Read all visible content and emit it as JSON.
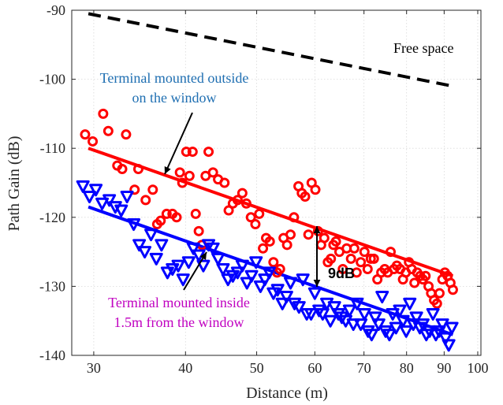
{
  "chart_data": {
    "type": "scatter",
    "title": "",
    "xlabel": "Distance (m)",
    "ylabel": "Path Gain (dB)",
    "xscale": "log",
    "xlim": [
      28,
      101
    ],
    "ylim": [
      -140,
      -90
    ],
    "x_ticks": [
      30,
      40,
      50,
      60,
      70,
      80,
      90,
      100
    ],
    "x_tick_labels": [
      "30",
      "40",
      "50",
      "60",
      "70",
      "80",
      "90",
      "100"
    ],
    "y_ticks": [
      -140,
      -130,
      -120,
      -110,
      -100,
      -90
    ],
    "y_tick_labels": [
      "-140",
      "-130",
      "-120",
      "-110",
      "-100",
      "-90"
    ],
    "grid": "dotted",
    "colors": {
      "outside": "#ff0000",
      "inside": "#0000ff",
      "free_space": "#000000",
      "outside_text": "#1f6fb2",
      "inside_text": "#c000c0"
    },
    "series": [
      {
        "marker": "circle",
        "color": "#ff0000",
        "x": [
          29.2,
          29.9,
          30.9,
          31.4,
          32.3,
          32.8,
          33.2,
          34.1,
          34.5,
          35.3,
          36.1,
          36.6,
          37.0,
          37.7,
          38.4,
          38.9,
          39.3,
          39.6,
          40.1,
          40.5,
          40.9,
          41.3,
          41.7,
          42.1,
          42.6,
          43.0,
          43.6,
          44.3,
          45.2,
          45.8,
          46.4,
          47.1,
          47.8,
          48.4,
          49.1,
          49.8,
          50.4,
          51.0,
          51.5,
          52.1,
          52.7,
          53.3,
          53.8,
          54.4,
          55.0,
          55.6,
          56.2,
          57.0,
          57.6,
          58.2,
          58.8,
          59.4,
          60.1,
          60.6,
          61.2,
          61.8,
          62.5,
          63.1,
          63.6,
          64.1,
          64.8,
          65.5,
          66.3,
          67.2,
          67.9,
          68.4,
          69.3,
          70.1,
          70.8,
          71.5,
          72.2,
          73.0,
          73.9,
          74.7,
          75.4,
          76.1,
          76.9,
          77.6,
          78.4,
          79.1,
          79.8,
          80.6,
          81.3,
          82.0,
          82.7,
          83.5,
          84.2,
          84.9,
          85.7,
          86.4,
          87.2,
          88.0,
          88.7,
          89.5,
          90.2,
          91.0,
          91.8,
          92.5
        ],
        "y": [
          -108.0,
          -109.0,
          -105.0,
          -107.5,
          -112.5,
          -113.0,
          -108.0,
          -116.0,
          -113.0,
          -117.5,
          -116.0,
          -121.0,
          -120.5,
          -119.5,
          -119.5,
          -120.0,
          -113.5,
          -115.0,
          -110.5,
          -114.0,
          -110.5,
          -119.5,
          -122.0,
          -124.0,
          -114.0,
          -110.5,
          -113.5,
          -114.5,
          -115.0,
          -119.0,
          -118.0,
          -117.5,
          -116.5,
          -118.0,
          -120.0,
          -121.0,
          -119.5,
          -124.5,
          -123.0,
          -123.5,
          -126.5,
          -128.0,
          -127.5,
          -123.0,
          -124.0,
          -122.5,
          -120.0,
          -115.5,
          -116.5,
          -117.0,
          -122.5,
          -115.0,
          -116.0,
          -122.0,
          -124.0,
          -123.0,
          -126.5,
          -126.0,
          -124.0,
          -123.5,
          -125.0,
          -127.5,
          -124.5,
          -126.0,
          -124.5,
          -128.0,
          -126.5,
          -125.0,
          -127.5,
          -126.0,
          -126.0,
          -129.0,
          -128.0,
          -127.5,
          -128.0,
          -125.0,
          -127.5,
          -127.0,
          -127.5,
          -129.0,
          -128.0,
          -126.5,
          -127.5,
          -129.5,
          -128.0,
          -128.5,
          -129.0,
          -128.5,
          -130.0,
          -131.0,
          -132.0,
          -132.5,
          -131.0,
          -129.0,
          -128.0,
          -128.5,
          -129.5,
          -130.5
        ]
      },
      {
        "marker": "triangle-down",
        "color": "#0000ff",
        "x": [
          29.0,
          29.6,
          30.2,
          30.8,
          31.5,
          32.1,
          32.7,
          33.3,
          34.0,
          34.6,
          35.2,
          35.9,
          36.5,
          37.1,
          37.8,
          38.4,
          39.1,
          39.7,
          40.4,
          41.0,
          41.7,
          42.3,
          43.0,
          43.6,
          44.3,
          45.0,
          45.7,
          46.4,
          47.1,
          47.8,
          48.5,
          49.2,
          49.9,
          50.6,
          51.3,
          52.0,
          52.7,
          53.4,
          54.2,
          54.9,
          55.6,
          56.3,
          57.1,
          57.8,
          58.5,
          59.3,
          60.0,
          60.8,
          61.5,
          62.3,
          63.0,
          63.8,
          64.6,
          65.3,
          66.1,
          66.9,
          67.7,
          68.5,
          69.3,
          70.1,
          70.9,
          71.7,
          72.5,
          73.3,
          74.1,
          74.9,
          75.8,
          76.6,
          77.4,
          78.3,
          79.1,
          79.9,
          80.8,
          81.7,
          82.5,
          83.4,
          84.2,
          85.1,
          86.0,
          86.9,
          87.7,
          88.6,
          89.5,
          90.4,
          91.3,
          92.2
        ],
        "y": [
          -115.5,
          -117.0,
          -116.0,
          -118.0,
          -117.5,
          -118.5,
          -119.0,
          -117.0,
          -121.0,
          -124.0,
          -125.0,
          -122.5,
          -126.0,
          -124.0,
          -128.0,
          -127.5,
          -127.0,
          -129.0,
          -126.5,
          -124.5,
          -125.5,
          -127.0,
          -124.0,
          -124.5,
          -126.0,
          -127.5,
          -129.0,
          -128.5,
          -128.0,
          -127.0,
          -129.5,
          -128.5,
          -126.5,
          -130.0,
          -129.0,
          -128.0,
          -131.0,
          -130.5,
          -132.5,
          -131.5,
          -129.5,
          -132.5,
          -133.0,
          -129.0,
          -134.0,
          -134.0,
          -131.0,
          -133.5,
          -134.0,
          -132.5,
          -135.0,
          -133.0,
          -134.0,
          -134.5,
          -135.0,
          -133.5,
          -135.5,
          -132.5,
          -135.5,
          -134.0,
          -136.5,
          -137.0,
          -134.5,
          -135.5,
          -131.5,
          -136.5,
          -137.0,
          -134.0,
          -136.0,
          -133.5,
          -135.0,
          -136.5,
          -132.5,
          -135.5,
          -134.5,
          -136.0,
          -135.5,
          -137.0,
          -136.5,
          -134.0,
          -137.0,
          -136.5,
          -135.5,
          -137.5,
          -138.5,
          -136.0
        ]
      }
    ],
    "fit_lines": [
      {
        "color": "#ff0000",
        "style": "solid",
        "x": [
          29.5,
          92.5
        ],
        "y": [
          -110.0,
          -128.5
        ]
      },
      {
        "color": "#0000ff",
        "style": "solid",
        "x": [
          29.5,
          92.5
        ],
        "y": [
          -118.5,
          -137.0
        ]
      },
      {
        "color": "#000000",
        "style": "dashed",
        "x": [
          29.5,
          92.5
        ],
        "y": [
          -90.5,
          -101.0
        ]
      }
    ],
    "annotations": {
      "free_space": "Free space",
      "outside_line1": "Terminal mounted outside",
      "outside_line2": "on the window",
      "inside_line1": "Terminal mounted inside",
      "inside_line2": "1.5m from the window",
      "gap": "9dB"
    }
  }
}
